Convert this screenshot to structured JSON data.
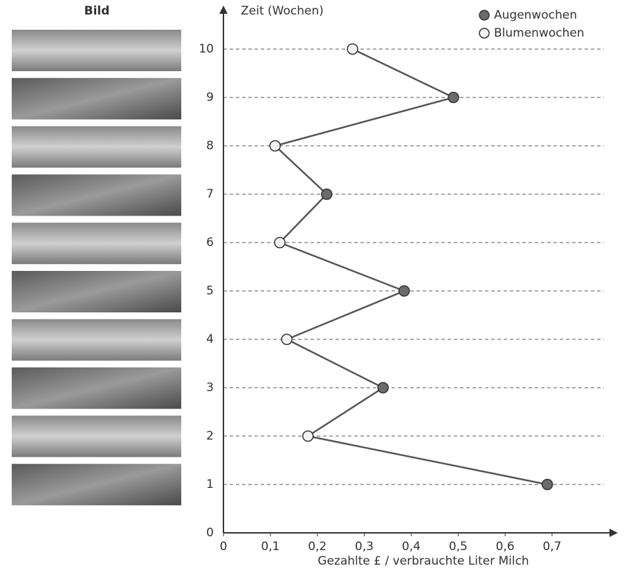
{
  "image_column_title": "Bild",
  "chart_data": {
    "type": "line",
    "y_label": "Zeit (Wochen)",
    "x_label": "Gezahlte £ / verbrauchte Liter Milch",
    "series": [
      {
        "name": "Augenwochen",
        "color": "#6b6b6b",
        "x": [
          0.69,
          0.34,
          0.385,
          0.22,
          0.49
        ],
        "y": [
          1,
          3,
          5,
          7,
          9
        ]
      },
      {
        "name": "Blumenwochen",
        "color": "#f2f2f2",
        "x": [
          0.18,
          0.135,
          0.12,
          0.11,
          0.275
        ],
        "y": [
          2,
          4,
          6,
          8,
          10
        ]
      }
    ],
    "line_color": "#555555",
    "xlim": [
      0,
      0.84
    ],
    "ylim": [
      0,
      10.9
    ],
    "xticks": [
      0,
      {
        "value": 0.1,
        "label": "0,1"
      },
      {
        "value": 0.2,
        "label": "0,2"
      },
      {
        "value": 0.3,
        "label": "0,3"
      },
      {
        "value": 0.4,
        "label": "0,4"
      },
      {
        "value": 0.5,
        "label": "0,5"
      },
      {
        "value": 0.6,
        "label": "0,6"
      },
      {
        "value": 0.7,
        "label": "0,7"
      }
    ],
    "yticks": [
      0,
      1,
      2,
      3,
      4,
      5,
      6,
      7,
      8,
      9,
      10
    ],
    "grid": true
  }
}
